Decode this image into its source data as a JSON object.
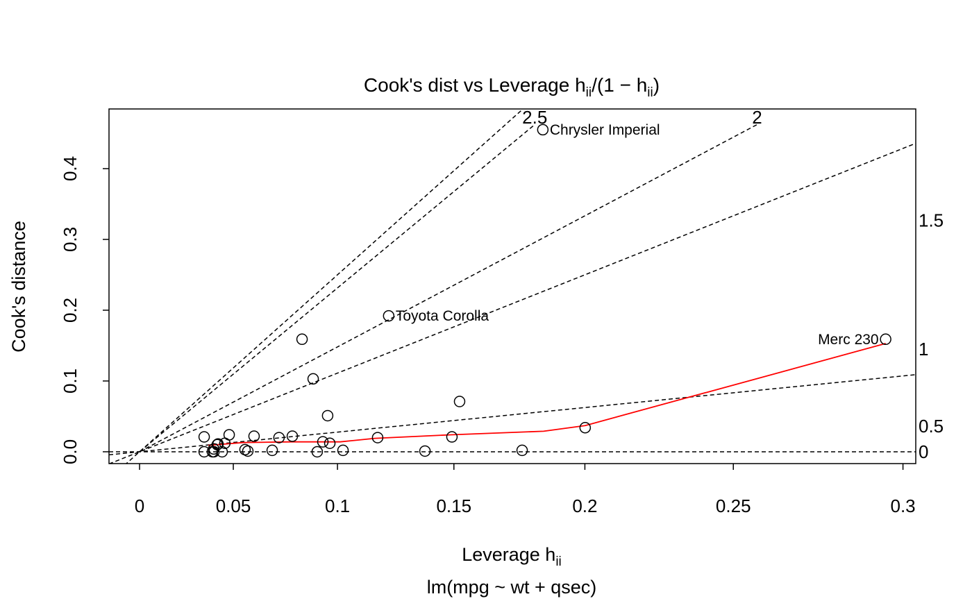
{
  "chart_data": {
    "type": "scatter",
    "title_parts": [
      "Cook's dist vs Leverage  h",
      "ii",
      "/(1 − h",
      "ii",
      ")"
    ],
    "x_label_parts": [
      "Leverage  h",
      "ii"
    ],
    "y_label": "Cook's distance",
    "subtitle": "lm(mpg ~ wt + qsec)",
    "x_scale": "h/(1-h)",
    "xlim": [
      -0.01745,
      0.3035
    ],
    "xticks": [
      0,
      0.05,
      0.1,
      0.15,
      0.2,
      0.25,
      0.3
    ],
    "ylim": [
      -0.0167,
      0.4843
    ],
    "yticks": [
      {
        "value": 0,
        "label": "0.0"
      },
      0.1,
      0.2,
      0.3,
      0.4
    ],
    "x": [
      0.1846,
      0.1227,
      0.2952,
      0.0836,
      0.0888,
      0.1523,
      0.0955,
      0.2001,
      0.035,
      0.0479,
      0.0604,
      0.0726,
      0.079,
      0.1179,
      0.1492,
      0.0422,
      0.0457,
      0.0418,
      0.0933,
      0.0965,
      0.035,
      0.0393,
      0.0443,
      0.0559,
      0.0573,
      0.0693,
      0.0907,
      0.1025,
      0.1381,
      0.1768,
      0.04,
      0.0401
    ],
    "values": [
      0.455,
      0.192,
      0.159,
      0.159,
      0.103,
      0.071,
      0.051,
      0.034,
      0.021,
      0.024,
      0.022,
      0.02,
      0.022,
      0.02,
      0.021,
      0.011,
      0.012,
      0.01,
      0.014,
      0.012,
      0.0,
      0.0,
      0.0,
      0.003,
      0.001,
      0.002,
      0.0,
      0.002,
      0.001,
      0.002,
      0.004,
      0.0
    ],
    "point_names": [
      "Chrysler Imperial",
      "Toyota Corolla",
      "Merc 230",
      null,
      null,
      null,
      null,
      null,
      null,
      null,
      null,
      null,
      null,
      null,
      null,
      null,
      null,
      null,
      null,
      null,
      null,
      null,
      null,
      null,
      null,
      null,
      null,
      null,
      null,
      null,
      null,
      null
    ],
    "smoother": {
      "color": "#ff0000",
      "x": [
        0.0372,
        0.0549,
        0.0786,
        0.1012,
        0.1167,
        0.1489,
        0.1849,
        0.2001,
        0.2952
      ],
      "values": [
        0.009,
        0.013,
        0.014,
        0.014,
        0.019,
        0.024,
        0.029,
        0.037,
        0.153
      ]
    },
    "contour_levels": [
      0,
      0.5,
      1,
      1.5,
      2,
      2.5
    ],
    "contour_p": 3
  }
}
